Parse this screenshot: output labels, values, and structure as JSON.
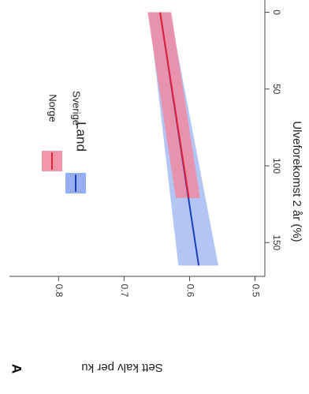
{
  "panel_label": "A",
  "chart_data": {
    "type": "line",
    "rotated": "90 degrees clockwise",
    "xlabel": "Ulveforekomst 2 år (%)",
    "ylabel": "Sett kalv per ku",
    "xlim": [
      -8,
      172
    ],
    "ylim": [
      0.485,
      0.875
    ],
    "x_ticks": [
      0,
      50,
      100,
      150
    ],
    "x_tick_labels": [
      "0",
      "50",
      "100",
      "150"
    ],
    "y_ticks": [
      0.5,
      0.6,
      0.7,
      0.8
    ],
    "y_tick_labels": [
      "0.5",
      "0.6",
      "0.7",
      "0.8"
    ],
    "grid": false,
    "legend": {
      "title": "Land",
      "entries": [
        "Norge",
        "Sverige"
      ]
    },
    "series": [
      {
        "name": "Norge",
        "color": "#e8203a",
        "band_color": "#f08aa0",
        "x": [
          0,
          121
        ],
        "y": [
          0.645,
          0.601
        ],
        "lower": [
          0.628,
          0.584
        ],
        "upper": [
          0.664,
          0.621
        ]
      },
      {
        "name": "Sverige",
        "color": "#1a3fbf",
        "band_color": "#8aa6f0",
        "x": [
          0,
          165
        ],
        "y": [
          0.645,
          0.586
        ],
        "lower": [
          0.63,
          0.556
        ],
        "upper": [
          0.662,
          0.617
        ]
      }
    ]
  }
}
